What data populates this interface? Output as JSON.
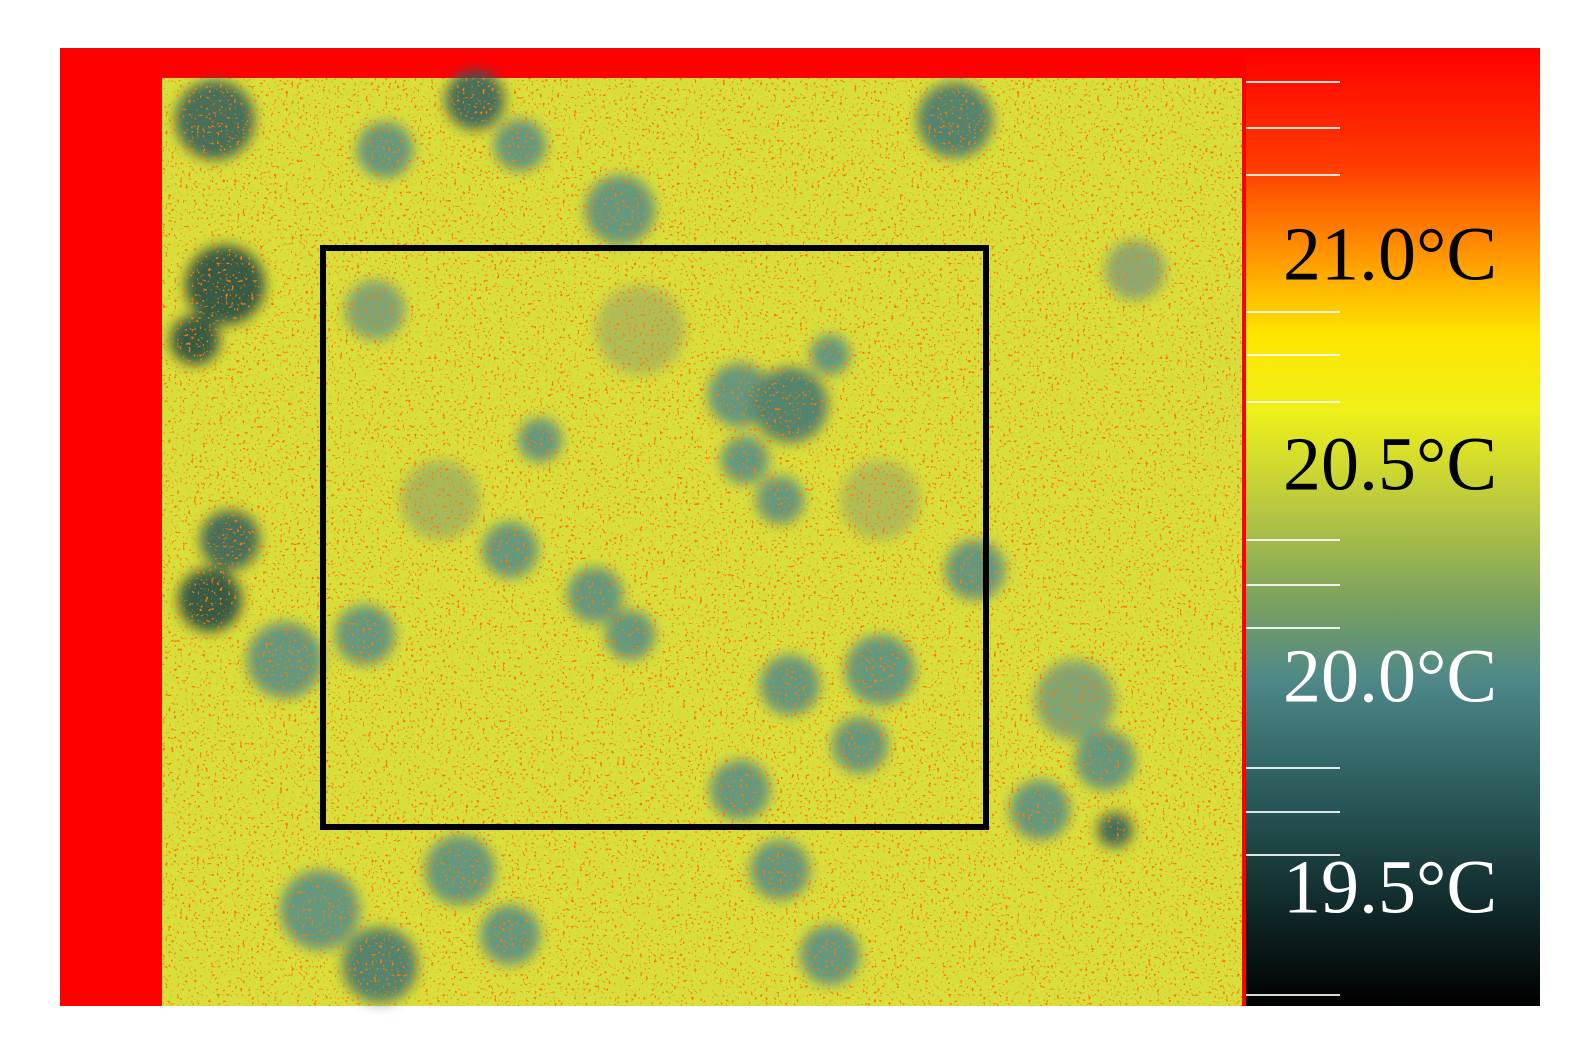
{
  "colorbar": {
    "labels": [
      "21.0°C",
      "20.5°C",
      "20.0°C",
      "19.5°C"
    ]
  }
}
